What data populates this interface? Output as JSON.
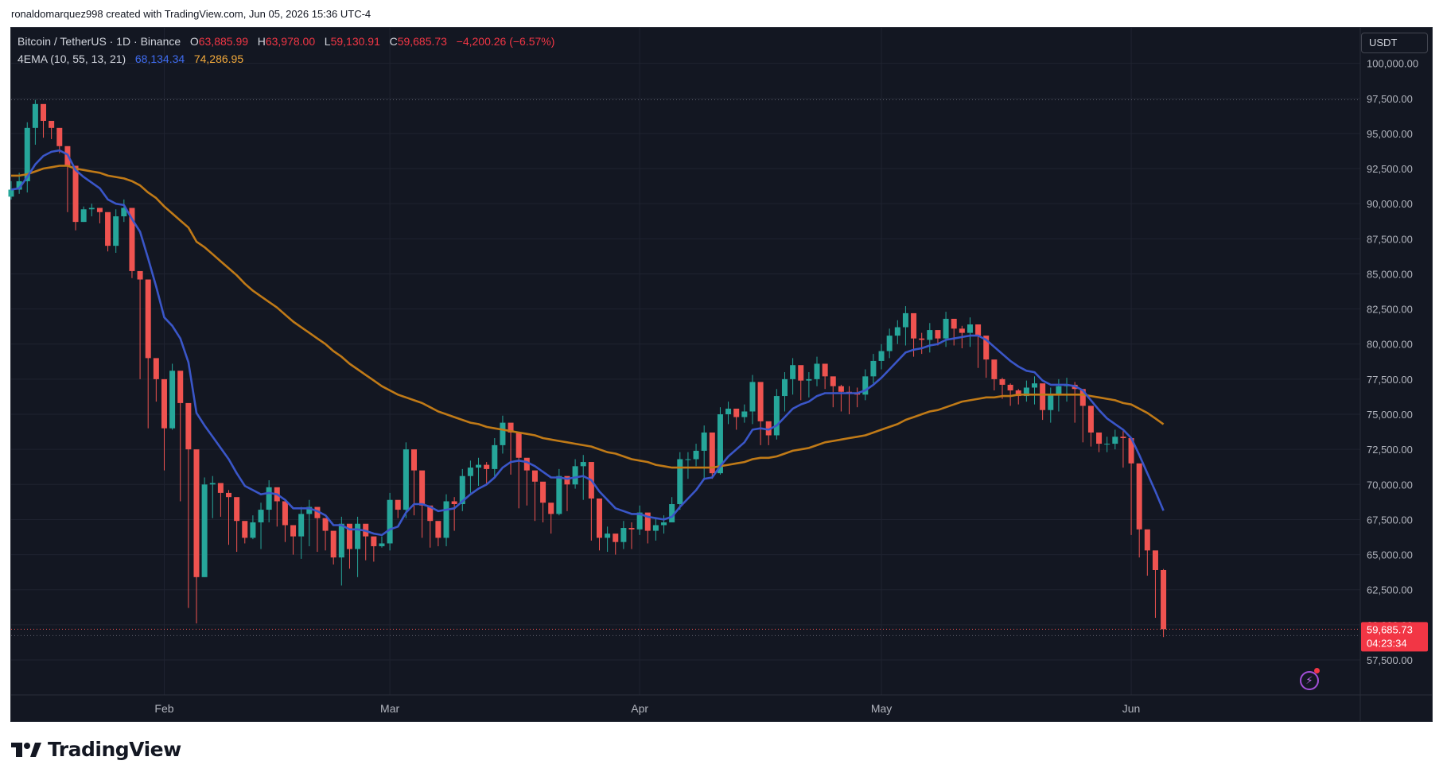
{
  "header": {
    "created_line": "ronaldomarquez998 created with TradingView.com, Jun 05, 2026 15:36 UTC-4"
  },
  "legend": {
    "symbol": "Bitcoin / TetherUS · 1D · Binance",
    "o_label": "O",
    "o_value": "63,885.99",
    "h_label": "H",
    "h_value": "63,978.00",
    "l_label": "L",
    "l_value": "59,130.91",
    "c_label": "C",
    "c_value": "59,685.73",
    "change": "−4,200.26 (−6.57%)",
    "indicator": "4EMA (10, 55, 13, 21)",
    "ema_fast": "68,134.34",
    "ema_slow": "74,286.95"
  },
  "currency_button": "USDT",
  "price_badge": {
    "price": "59,685.73",
    "countdown": "04:23:34"
  },
  "brand": "TradingView",
  "icons": {
    "replay": "lightning-icon",
    "logo": "tradingview-logo-icon"
  },
  "colors": {
    "background": "#131722",
    "up": "#26a69a",
    "down": "#ef5350",
    "ema_fast": "#3a56c8",
    "ema_slow": "#c07a17",
    "grid": "#1f2330",
    "text": "#b2b5be"
  },
  "chart_data": {
    "type": "candlestick",
    "y_ticks": [
      "57,500.00",
      "60,000.00",
      "62,500.00",
      "65,000.00",
      "67,500.00",
      "70,000.00",
      "72,500.00",
      "75,000.00",
      "77,500.00",
      "80,000.00",
      "82,500.00",
      "85,000.00",
      "87,500.00",
      "90,000.00",
      "92,500.00",
      "95,000.00",
      "97,500.00",
      "100,000.00"
    ],
    "x_ticks": [
      {
        "label": "Feb",
        "index": 19
      },
      {
        "label": "Mar",
        "index": 47
      },
      {
        "label": "Apr",
        "index": 78
      },
      {
        "label": "May",
        "index": 108
      },
      {
        "label": "Jun",
        "index": 139
      }
    ],
    "start_price": 90500,
    "closes": [
      91000,
      91600,
      95400,
      97100,
      95900,
      95400,
      94100,
      92700,
      88700,
      89600,
      89700,
      89400,
      87000,
      89100,
      89700,
      85200,
      84600,
      79000,
      77500,
      74000,
      78100,
      75800,
      72500,
      63400,
      70000,
      70100,
      69400,
      69100,
      67400,
      66200,
      67300,
      68200,
      69800,
      68800,
      67100,
      66300,
      67900,
      68400,
      67600,
      66700,
      64800,
      67200,
      65400,
      67200,
      66300,
      65600,
      65800,
      68900,
      68200,
      72500,
      71000,
      68500,
      67400,
      66200,
      68800,
      68600,
      70600,
      71200,
      71400,
      71100,
      72800,
      74400,
      73700,
      71900,
      71000,
      70200,
      68700,
      67900,
      70600,
      70000,
      71300,
      71600,
      69000,
      66200,
      66500,
      65900,
      66900,
      66800,
      68000,
      66700,
      67100,
      67300,
      68600,
      71800,
      71800,
      72400,
      73700,
      70800,
      75000,
      75400,
      74800,
      75200,
      77300,
      74500,
      73500,
      76300,
      77500,
      78500,
      77400,
      77500,
      78600,
      77700,
      77000,
      76600,
      76500,
      76400,
      77700,
      78800,
      79500,
      80600,
      81200,
      82200,
      80400,
      80300,
      81000,
      80400,
      81800,
      81100,
      80800,
      81400,
      80600,
      78900,
      77500,
      77100,
      76700,
      76300,
      76900,
      77200,
      75300,
      76400,
      77000,
      77100,
      76800,
      75600,
      73700,
      72900,
      72900,
      73400,
      73300,
      71500,
      66800,
      65300,
      63900,
      59686
    ],
    "highs": [
      91600,
      92200,
      95800,
      97400,
      96000,
      95500,
      94800,
      93300,
      89000,
      89800,
      90000,
      89700,
      87600,
      89600,
      90300,
      85700,
      85000,
      79400,
      77800,
      74500,
      78600,
      76300,
      73000,
      63900,
      70500,
      70600,
      69900,
      69600,
      67900,
      66700,
      67800,
      68700,
      70300,
      69300,
      67600,
      66800,
      68400,
      68900,
      68100,
      67200,
      65300,
      67700,
      65900,
      67700,
      66800,
      66100,
      66300,
      69400,
      68700,
      73000,
      71500,
      69000,
      67900,
      66700,
      69300,
      69100,
      71100,
      71700,
      71900,
      71600,
      73300,
      74900,
      74200,
      72400,
      71500,
      70700,
      69200,
      68400,
      71100,
      70500,
      71800,
      72100,
      69500,
      66700,
      67000,
      66400,
      67400,
      67300,
      68500,
      67200,
      67600,
      67800,
      69100,
      72300,
      72300,
      72900,
      74200,
      71300,
      75500,
      75900,
      75300,
      75700,
      77800,
      75000,
      74000,
      76800,
      78000,
      79000,
      77900,
      78000,
      79100,
      78200,
      77500,
      77100,
      77000,
      76900,
      78200,
      79300,
      80000,
      81100,
      81700,
      82700,
      80900,
      80800,
      81500,
      80900,
      82300,
      81600,
      81300,
      81900,
      81100,
      79400,
      78000,
      77600,
      77200,
      76800,
      77400,
      77700,
      75800,
      76900,
      77500,
      77600,
      77300,
      76100,
      74200,
      73400,
      73400,
      73900,
      73800,
      72000,
      67300,
      65800,
      64400,
      63978
    ],
    "lows": [
      90300,
      90700,
      90800,
      94200,
      94700,
      94600,
      93600,
      89400,
      88100,
      88700,
      89100,
      88600,
      86600,
      86500,
      88700,
      84700,
      77500,
      74000,
      75900,
      71000,
      73900,
      68800,
      61200,
      60100,
      63400,
      67600,
      67700,
      65700,
      65200,
      65800,
      66100,
      65400,
      67300,
      67000,
      65900,
      65000,
      64700,
      65600,
      65200,
      65300,
      64300,
      62800,
      64000,
      63400,
      64600,
      64500,
      65500,
      65300,
      67600,
      67600,
      67800,
      66200,
      65500,
      65600,
      65600,
      66700,
      68100,
      69400,
      69900,
      70000,
      70500,
      72200,
      70700,
      68300,
      68500,
      67400,
      67300,
      66500,
      67800,
      68100,
      69700,
      68900,
      66000,
      65300,
      65200,
      65000,
      65400,
      65400,
      66400,
      65800,
      66000,
      66500,
      68100,
      68200,
      70400,
      71300,
      70300,
      70400,
      70700,
      74300,
      73900,
      74400,
      74300,
      72800,
      72800,
      73200,
      75200,
      76400,
      76000,
      76200,
      77000,
      76800,
      75500,
      75200,
      75000,
      75500,
      76000,
      77200,
      78200,
      79000,
      80000,
      79900,
      79100,
      79300,
      79400,
      79900,
      79800,
      79900,
      79700,
      79800,
      78300,
      77600,
      76700,
      76100,
      75600,
      75700,
      75900,
      75700,
      74600,
      74400,
      75200,
      75900,
      74400,
      73000,
      72700,
      72300,
      72300,
      72500,
      71200,
      66400,
      64800,
      63500,
      60500,
      59131
    ],
    "ema_fast": [
      91000,
      91100,
      91900,
      92800,
      93400,
      93700,
      93800,
      93500,
      92400,
      91900,
      91500,
      91100,
      90300,
      90000,
      89900,
      88900,
      88000,
      86100,
      84100,
      81900,
      81300,
      80400,
      78700,
      75100,
      74200,
      73400,
      72600,
      71800,
      70800,
      69900,
      69600,
      69300,
      69400,
      69300,
      68900,
      68300,
      68300,
      68300,
      68100,
      67800,
      67100,
      67100,
      66800,
      66800,
      66700,
      66500,
      66400,
      66800,
      67000,
      68000,
      68600,
      68600,
      68400,
      68100,
      68200,
      68300,
      68800,
      69300,
      69700,
      70000,
      70500,
      71200,
      71600,
      71700,
      71600,
      71300,
      70900,
      70500,
      70500,
      70400,
      70500,
      70600,
      70300,
      69500,
      68900,
      68300,
      68100,
      67900,
      67900,
      67700,
      67600,
      67500,
      67700,
      68400,
      69000,
      69600,
      70400,
      70500,
      71300,
      72000,
      72500,
      73000,
      73900,
      74000,
      73900,
      74200,
      74800,
      75400,
      75700,
      75900,
      76300,
      76500,
      76500,
      76500,
      76500,
      76500,
      76700,
      77100,
      77600,
      78200,
      78800,
      79400,
      79600,
      79700,
      79900,
      80000,
      80300,
      80400,
      80500,
      80600,
      80600,
      80300,
      79800,
      79300,
      78800,
      78400,
      78100,
      78000,
      77400,
      77100,
      77100,
      77100,
      77000,
      76700,
      76000,
      75300,
      74700,
      74300,
      73900,
      73300,
      72100,
      70800,
      69500,
      68134
    ],
    "ema_slow": [
      92000,
      92000,
      92100,
      92300,
      92500,
      92600,
      92700,
      92700,
      92500,
      92400,
      92300,
      92200,
      92000,
      91900,
      91800,
      91600,
      91300,
      90800,
      90400,
      89800,
      89300,
      88800,
      88300,
      87300,
      86900,
      86400,
      85900,
      85400,
      84900,
      84300,
      83800,
      83400,
      83000,
      82600,
      82100,
      81600,
      81200,
      80800,
      80400,
      80000,
      79500,
      79100,
      78600,
      78200,
      77800,
      77400,
      77000,
      76700,
      76400,
      76200,
      76000,
      75800,
      75500,
      75200,
      75000,
      74800,
      74600,
      74400,
      74300,
      74100,
      74000,
      73900,
      73800,
      73700,
      73600,
      73500,
      73300,
      73200,
      73100,
      73000,
      72900,
      72800,
      72700,
      72500,
      72300,
      72200,
      72000,
      71800,
      71700,
      71600,
      71400,
      71300,
      71200,
      71200,
      71200,
      71200,
      71200,
      71200,
      71300,
      71400,
      71500,
      71600,
      71800,
      71900,
      71900,
      72000,
      72200,
      72400,
      72500,
      72600,
      72800,
      73000,
      73100,
      73200,
      73300,
      73400,
      73500,
      73700,
      73900,
      74100,
      74300,
      74600,
      74800,
      75000,
      75200,
      75300,
      75500,
      75700,
      75900,
      76000,
      76100,
      76200,
      76200,
      76300,
      76300,
      76400,
      76400,
      76400,
      76400,
      76400,
      76400,
      76400,
      76400,
      76400,
      76300,
      76200,
      76100,
      76000,
      75800,
      75700,
      75400,
      75100,
      74700,
      74287
    ]
  }
}
